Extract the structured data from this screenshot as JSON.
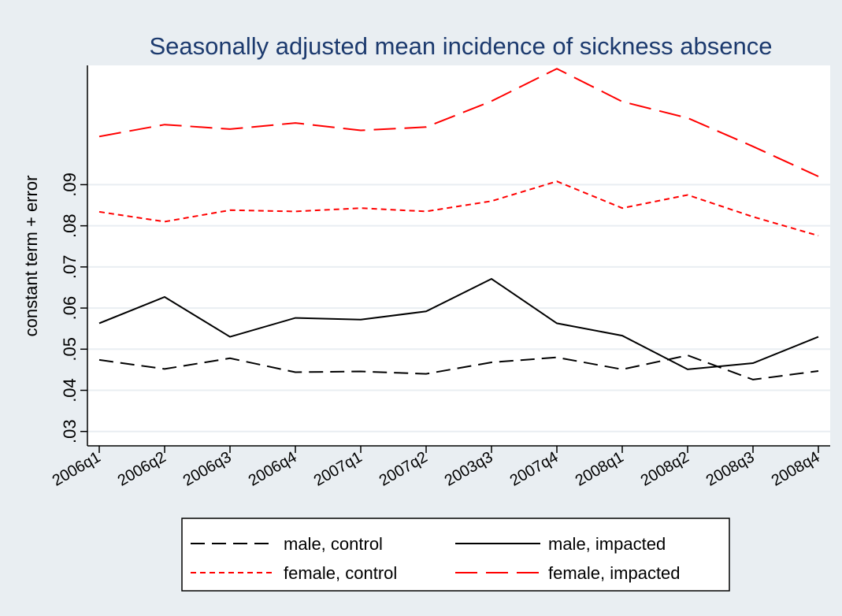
{
  "chart_data": {
    "type": "line",
    "title": "Seasonally adjusted mean incidence of sickness absence",
    "xlabel": "",
    "ylabel": "constant term + error",
    "categories": [
      "2006q1",
      "2006q2",
      "2006q3",
      "2006q4",
      "2007q1",
      "2007q2",
      "2003q3",
      "2007q4",
      "2008q1",
      "2008q2",
      "2008q3",
      "2008q4"
    ],
    "yticks": [
      ".03",
      ".04",
      ".05",
      ".06",
      ".07",
      ".08",
      ".09"
    ],
    "ylim": [
      0.0265,
      0.119
    ],
    "grid": true,
    "legend_position": "bottom",
    "series": [
      {
        "name": "male, control",
        "color": "#000000",
        "dash": "long",
        "values": [
          0.0474,
          0.0452,
          0.0478,
          0.0444,
          0.0446,
          0.044,
          0.0468,
          0.048,
          0.0451,
          0.0485,
          0.0426,
          0.0447
        ]
      },
      {
        "name": "male, impacted",
        "color": "#000000",
        "dash": "solid",
        "values": [
          0.0563,
          0.0627,
          0.053,
          0.0576,
          0.0572,
          0.0592,
          0.0671,
          0.0563,
          0.0533,
          0.0451,
          0.0466,
          0.053
        ]
      },
      {
        "name": "female, control",
        "color": "#ff0000",
        "dash": "short",
        "values": [
          0.0834,
          0.081,
          0.0838,
          0.0835,
          0.0843,
          0.0835,
          0.086,
          0.0908,
          0.0843,
          0.0875,
          0.0822,
          0.0776
        ]
      },
      {
        "name": "female, impacted",
        "color": "#ff0000",
        "dash": "longer",
        "values": [
          0.1017,
          0.1046,
          0.1035,
          0.105,
          0.1032,
          0.104,
          0.1103,
          0.1182,
          0.1102,
          0.1062,
          0.0993,
          0.092
        ]
      }
    ]
  }
}
